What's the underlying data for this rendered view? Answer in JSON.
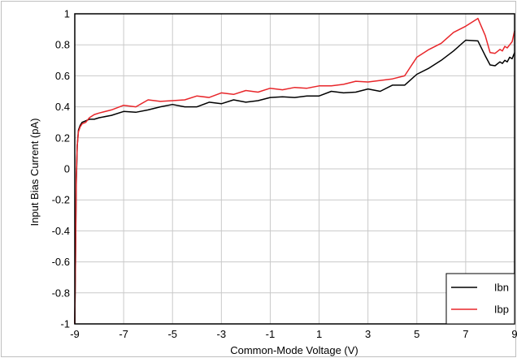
{
  "chart_data": {
    "type": "line",
    "title": "",
    "xlabel": "Common-Mode Voltage (V)",
    "ylabel": "Input Bias Current (pA)",
    "xlim": [
      -9,
      9
    ],
    "ylim": [
      -1,
      1
    ],
    "xticks": [
      -9,
      -7,
      -5,
      -3,
      -1,
      1,
      3,
      5,
      7,
      9
    ],
    "yticks": [
      -1,
      -0.8,
      -0.6,
      -0.4,
      -0.2,
      0,
      0.2,
      0.4,
      0.6,
      0.8,
      1
    ],
    "xtick_labels": [
      "-9",
      "-7",
      "-5",
      "-3",
      "-1",
      "1",
      "3",
      "5",
      "7",
      "9"
    ],
    "ytick_labels": [
      "-1",
      "-0.8",
      "-0.6",
      "-0.4",
      "-0.2",
      "0",
      "0.2",
      "0.4",
      "0.6",
      "0.8",
      "1"
    ],
    "grid": true,
    "legend_position": "bottom-right",
    "series": [
      {
        "name": "Ibn",
        "color": "#000000",
        "points": [
          [
            -9,
            -1
          ],
          [
            -8.97,
            -0.6
          ],
          [
            -8.94,
            -0.1
          ],
          [
            -8.9,
            0.15
          ],
          [
            -8.85,
            0.25
          ],
          [
            -8.78,
            0.28
          ],
          [
            -8.7,
            0.3
          ],
          [
            -8.55,
            0.31
          ],
          [
            -8.4,
            0.32
          ],
          [
            -8.2,
            0.32
          ],
          [
            -8,
            0.33
          ],
          [
            -7.5,
            0.345
          ],
          [
            -7,
            0.37
          ],
          [
            -6.5,
            0.365
          ],
          [
            -6,
            0.38
          ],
          [
            -5.5,
            0.4
          ],
          [
            -5,
            0.415
          ],
          [
            -4.5,
            0.4
          ],
          [
            -4,
            0.4
          ],
          [
            -3.5,
            0.43
          ],
          [
            -3,
            0.42
          ],
          [
            -2.5,
            0.445
          ],
          [
            -2,
            0.43
          ],
          [
            -1.5,
            0.44
          ],
          [
            -1,
            0.46
          ],
          [
            -0.5,
            0.465
          ],
          [
            0,
            0.46
          ],
          [
            0.5,
            0.47
          ],
          [
            1,
            0.47
          ],
          [
            1.5,
            0.5
          ],
          [
            2,
            0.49
          ],
          [
            2.5,
            0.495
          ],
          [
            3,
            0.515
          ],
          [
            3.5,
            0.5
          ],
          [
            4,
            0.54
          ],
          [
            4.5,
            0.54
          ],
          [
            5,
            0.61
          ],
          [
            5.5,
            0.65
          ],
          [
            6,
            0.7
          ],
          [
            6.5,
            0.76
          ],
          [
            7,
            0.83
          ],
          [
            7.5,
            0.825
          ],
          [
            7.8,
            0.73
          ],
          [
            8,
            0.67
          ],
          [
            8.2,
            0.665
          ],
          [
            8.4,
            0.69
          ],
          [
            8.5,
            0.68
          ],
          [
            8.6,
            0.7
          ],
          [
            8.7,
            0.69
          ],
          [
            8.8,
            0.72
          ],
          [
            8.9,
            0.71
          ],
          [
            9,
            0.75
          ]
        ]
      },
      {
        "name": "Ibp",
        "color": "#e8262a",
        "points": [
          [
            -9,
            -1
          ],
          [
            -8.97,
            -0.55
          ],
          [
            -8.94,
            -0.05
          ],
          [
            -8.9,
            0.15
          ],
          [
            -8.85,
            0.24
          ],
          [
            -8.78,
            0.27
          ],
          [
            -8.7,
            0.29
          ],
          [
            -8.55,
            0.3
          ],
          [
            -8.4,
            0.33
          ],
          [
            -8.2,
            0.35
          ],
          [
            -8,
            0.36
          ],
          [
            -7.5,
            0.38
          ],
          [
            -7,
            0.41
          ],
          [
            -6.5,
            0.4
          ],
          [
            -6,
            0.445
          ],
          [
            -5.5,
            0.435
          ],
          [
            -5,
            0.44
          ],
          [
            -4.5,
            0.445
          ],
          [
            -4,
            0.47
          ],
          [
            -3.5,
            0.46
          ],
          [
            -3,
            0.49
          ],
          [
            -2.5,
            0.48
          ],
          [
            -2,
            0.505
          ],
          [
            -1.5,
            0.495
          ],
          [
            -1,
            0.52
          ],
          [
            -0.5,
            0.51
          ],
          [
            0,
            0.525
          ],
          [
            0.5,
            0.52
          ],
          [
            1,
            0.535
          ],
          [
            1.5,
            0.535
          ],
          [
            2,
            0.545
          ],
          [
            2.5,
            0.565
          ],
          [
            3,
            0.56
          ],
          [
            3.5,
            0.57
          ],
          [
            4,
            0.58
          ],
          [
            4.5,
            0.6
          ],
          [
            5,
            0.72
          ],
          [
            5.5,
            0.77
          ],
          [
            6,
            0.81
          ],
          [
            6.5,
            0.88
          ],
          [
            7,
            0.92
          ],
          [
            7.5,
            0.97
          ],
          [
            7.8,
            0.86
          ],
          [
            8,
            0.75
          ],
          [
            8.2,
            0.745
          ],
          [
            8.4,
            0.77
          ],
          [
            8.5,
            0.76
          ],
          [
            8.6,
            0.79
          ],
          [
            8.7,
            0.78
          ],
          [
            8.8,
            0.8
          ],
          [
            8.9,
            0.82
          ],
          [
            9,
            0.89
          ]
        ]
      }
    ]
  }
}
